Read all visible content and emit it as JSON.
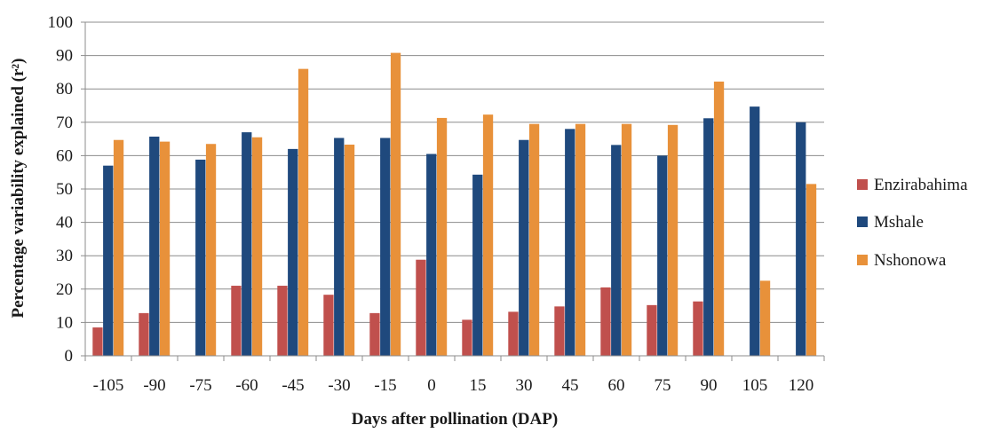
{
  "chart_data": {
    "type": "bar",
    "xlabel": "Days after pollination (DAP)",
    "ylabel": "Percentage variability explained (r²)",
    "categories": [
      "-105",
      "-90",
      "-75",
      "-60",
      "-45",
      "-30",
      "-15",
      "0",
      "15",
      "30",
      "45",
      "60",
      "75",
      "90",
      "105",
      "120"
    ],
    "ylim": [
      0,
      100
    ],
    "y_ticks": [
      0,
      10,
      20,
      30,
      40,
      50,
      60,
      70,
      80,
      90,
      100
    ],
    "grid": "horizontal",
    "legend_position": "right",
    "series": [
      {
        "name": "Enzirabahima",
        "color": "#C0504D",
        "values": [
          8.5,
          12.8,
          null,
          21.0,
          21.0,
          18.3,
          12.8,
          28.8,
          10.8,
          13.2,
          14.8,
          20.5,
          15.2,
          16.3,
          null,
          null
        ]
      },
      {
        "name": "Mshale",
        "color": "#1F497D",
        "values": [
          57.0,
          65.7,
          58.8,
          67.0,
          62.0,
          65.3,
          65.3,
          60.5,
          54.3,
          64.7,
          68.0,
          63.2,
          60.0,
          71.2,
          74.7,
          70.0
        ]
      },
      {
        "name": "Nshonowa",
        "color": "#E8913A",
        "values": [
          64.7,
          64.2,
          63.5,
          65.5,
          86.0,
          63.3,
          90.8,
          71.3,
          72.3,
          69.5,
          69.5,
          69.5,
          69.2,
          82.2,
          22.5,
          51.5
        ]
      }
    ]
  }
}
